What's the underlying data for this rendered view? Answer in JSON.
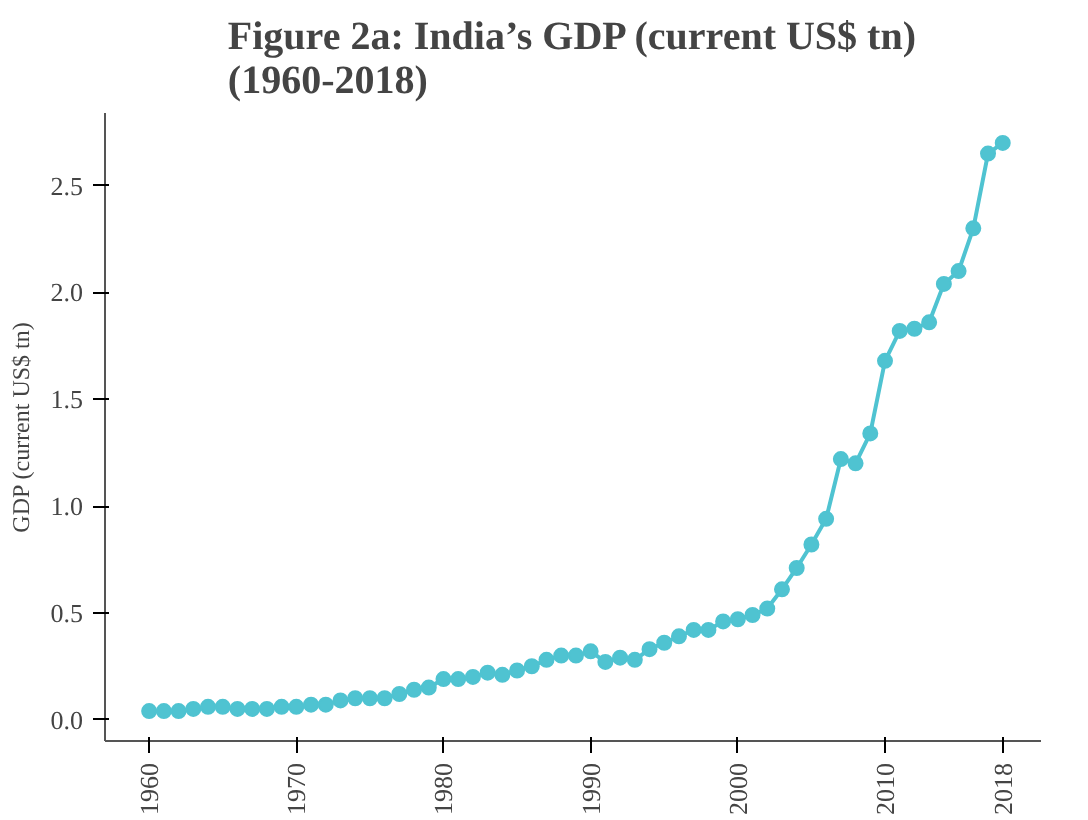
{
  "chart_data": {
    "type": "line",
    "title": "Figure 2a: India’s GDP (current US$ tn)\n(1960-2018)",
    "ylabel": "GDP (current US$ tn)",
    "x": [
      1960,
      1961,
      1962,
      1963,
      1964,
      1965,
      1966,
      1967,
      1968,
      1969,
      1970,
      1971,
      1972,
      1973,
      1974,
      1975,
      1976,
      1977,
      1978,
      1979,
      1980,
      1981,
      1982,
      1983,
      1984,
      1985,
      1986,
      1987,
      1988,
      1989,
      1990,
      1991,
      1992,
      1993,
      1994,
      1995,
      1996,
      1997,
      1998,
      1999,
      2000,
      2001,
      2002,
      2003,
      2004,
      2005,
      2006,
      2007,
      2008,
      2009,
      2010,
      2011,
      2012,
      2013,
      2014,
      2015,
      2016,
      2017,
      2018
    ],
    "series": [
      {
        "color": "#4fc3d1",
        "values": [
          0.04,
          0.04,
          0.04,
          0.05,
          0.06,
          0.06,
          0.05,
          0.05,
          0.05,
          0.06,
          0.06,
          0.07,
          0.07,
          0.09,
          0.1,
          0.1,
          0.1,
          0.12,
          0.14,
          0.15,
          0.19,
          0.19,
          0.2,
          0.22,
          0.21,
          0.23,
          0.25,
          0.28,
          0.3,
          0.3,
          0.32,
          0.27,
          0.29,
          0.28,
          0.33,
          0.36,
          0.39,
          0.42,
          0.42,
          0.46,
          0.47,
          0.49,
          0.52,
          0.61,
          0.71,
          0.82,
          0.94,
          1.22,
          1.2,
          1.34,
          1.68,
          1.82,
          1.83,
          1.86,
          2.04,
          2.1,
          2.3,
          2.65,
          2.7
        ]
      }
    ],
    "xlim": [
      1957,
      2020.6
    ],
    "xticks": [
      1960,
      1970,
      1980,
      1990,
      2000,
      2010,
      2018
    ],
    "ylim": [
      -0.1,
      2.84
    ],
    "yticks": [
      {
        "value": 0,
        "label": "0.0"
      },
      {
        "value": 0.5,
        "label": "0.5"
      },
      {
        "value": 1,
        "label": "1.0"
      },
      {
        "value": 1.5,
        "label": "1.5"
      },
      {
        "value": 2,
        "label": "2.0"
      },
      {
        "value": 2.5,
        "label": "2.5"
      }
    ],
    "grid": false,
    "marker": "circle",
    "line_style": "solid"
  }
}
